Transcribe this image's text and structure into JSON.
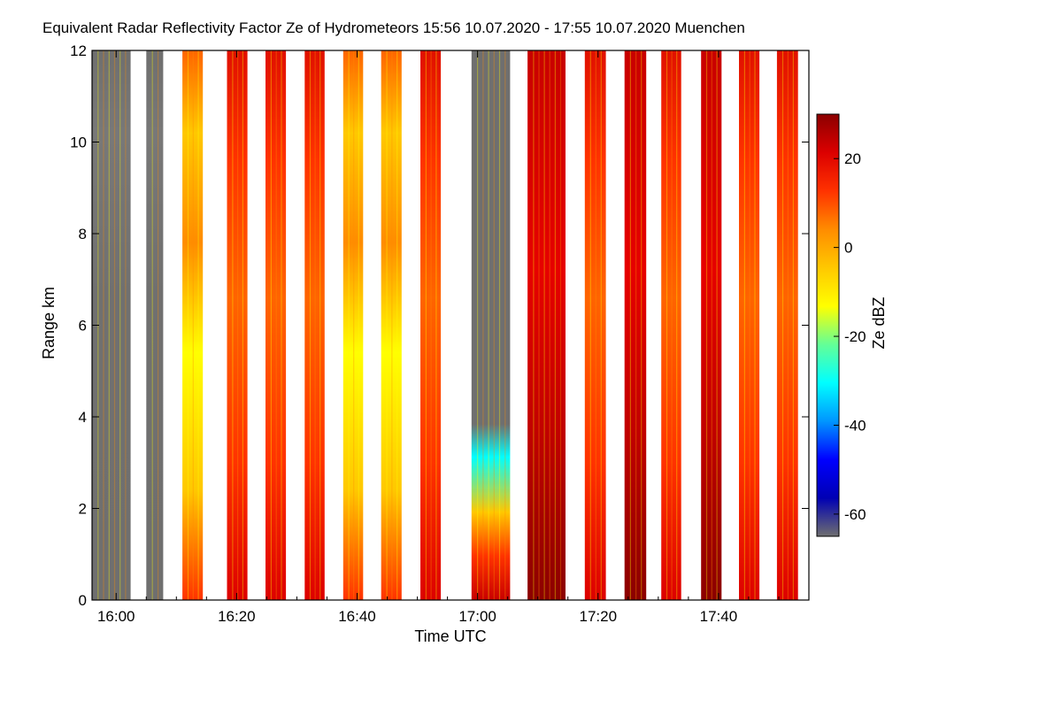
{
  "chart_data": {
    "type": "heatmap",
    "title": "Equivalent Radar Reflectivity Factor Ze of Hydrometeors   15:56 10.07.2020 - 17:55 10.07.2020 Muenchen",
    "xlabel": "Time UTC",
    "ylabel": "Range km",
    "colorbar_label": "Ze dBZ",
    "x_range_minutes_utc": [
      956,
      1075
    ],
    "y_range_km": [
      0,
      12
    ],
    "colorbar_range_dbz": [
      -65,
      30
    ],
    "x_ticks": [
      {
        "minute": 960,
        "label": "16:00"
      },
      {
        "minute": 980,
        "label": "16:20"
      },
      {
        "minute": 1000,
        "label": "16:40"
      },
      {
        "minute": 1020,
        "label": "17:00"
      },
      {
        "minute": 1040,
        "label": "17:20"
      },
      {
        "minute": 1060,
        "label": "17:40"
      }
    ],
    "y_ticks": [
      {
        "value": 0,
        "label": "0"
      },
      {
        "value": 2,
        "label": "2"
      },
      {
        "value": 4,
        "label": "4"
      },
      {
        "value": 6,
        "label": "6"
      },
      {
        "value": 8,
        "label": "8"
      },
      {
        "value": 10,
        "label": "10"
      },
      {
        "value": 12,
        "label": "12"
      }
    ],
    "colorbar_ticks": [
      {
        "value": 20,
        "label": "20"
      },
      {
        "value": 0,
        "label": "0"
      },
      {
        "value": -20,
        "label": "-20"
      },
      {
        "value": -40,
        "label": "-40"
      },
      {
        "value": -60,
        "label": "-60"
      }
    ],
    "colormap": [
      "#6f6f6f",
      "#0000b4",
      "#0000ff",
      "#0096ff",
      "#00ffff",
      "#64ff96",
      "#ffff00",
      "#ffc800",
      "#ff8c00",
      "#ff3200",
      "#dc0000",
      "#8b0000"
    ],
    "segments": [
      {
        "start": 956.0,
        "end": 962.4,
        "profile": "weak"
      },
      {
        "start": 965.0,
        "end": 967.8,
        "profile": "weak"
      },
      {
        "start": 971.0,
        "end": 974.4,
        "profile": "mixed"
      },
      {
        "start": 978.4,
        "end": 981.8,
        "profile": "strong"
      },
      {
        "start": 984.8,
        "end": 988.2,
        "profile": "strong"
      },
      {
        "start": 991.3,
        "end": 994.6,
        "profile": "strong"
      },
      {
        "start": 997.7,
        "end": 1001.0,
        "profile": "mixed"
      },
      {
        "start": 1004.0,
        "end": 1007.4,
        "profile": "mixed"
      },
      {
        "start": 1010.5,
        "end": 1013.9,
        "profile": "strong"
      },
      {
        "start": 1019.0,
        "end": 1025.4,
        "profile": "lowrain"
      },
      {
        "start": 1028.3,
        "end": 1034.6,
        "profile": "heavy"
      },
      {
        "start": 1037.8,
        "end": 1041.3,
        "profile": "strong"
      },
      {
        "start": 1044.4,
        "end": 1048.0,
        "profile": "heavy"
      },
      {
        "start": 1050.5,
        "end": 1053.8,
        "profile": "strong"
      },
      {
        "start": 1057.1,
        "end": 1060.5,
        "profile": "heavy"
      },
      {
        "start": 1063.4,
        "end": 1066.8,
        "profile": "strong"
      },
      {
        "start": 1069.7,
        "end": 1073.2,
        "profile": "strong"
      }
    ]
  }
}
